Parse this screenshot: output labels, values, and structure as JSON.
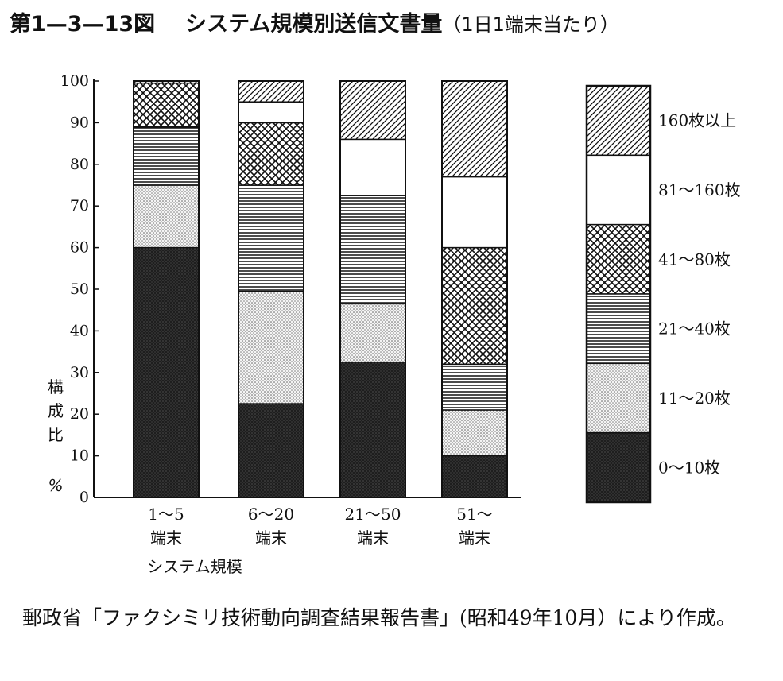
{
  "title": {
    "number": "第1—3—13図",
    "text": "システム規模別送信文書量",
    "subtitle": "（1日1端末当たり）"
  },
  "source": "郵政省「ファクシミリ技術動向調査結果報告書」(昭和49年10月）により作成。",
  "colors": {
    "0-10": "#1e1e1e",
    "11-20": "stipple-light",
    "21-40": "horizontal-lines",
    "41-80": "crosshatch",
    "81-160": "#ffffff",
    "160+": "diagonal-hatch"
  },
  "chart_data": {
    "type": "bar",
    "stacked": true,
    "ylabel": [
      "構",
      "成",
      "比",
      "%"
    ],
    "xlabel": "システム規模",
    "ylim": [
      0,
      100
    ],
    "yticks": [
      0,
      10,
      20,
      30,
      40,
      50,
      60,
      70,
      80,
      90,
      100
    ],
    "categories": [
      {
        "line1": "1～5",
        "line2": "端末"
      },
      {
        "line1": "6～20",
        "line2": "端末"
      },
      {
        "line1": "21～50",
        "line2": "端末"
      },
      {
        "line1": "51～",
        "line2": "端末"
      }
    ],
    "series": [
      {
        "name": "0～10枚",
        "key": "s0",
        "values": [
          60,
          22.5,
          32.5,
          10
        ]
      },
      {
        "name": "11～20枚",
        "key": "s1",
        "values": [
          15,
          27,
          14,
          11
        ]
      },
      {
        "name": "21～40枚",
        "key": "s2",
        "values": [
          14,
          25.5,
          26,
          11
        ]
      },
      {
        "name": "41～80枚",
        "key": "s3",
        "values": [
          10.5,
          15,
          0,
          28
        ]
      },
      {
        "name": "81～160枚",
        "key": "s4",
        "values": [
          0,
          5,
          13.5,
          17
        ]
      },
      {
        "name": "160枚以上",
        "key": "s5",
        "values": [
          0.5,
          5,
          14,
          23
        ]
      }
    ],
    "legend_position": "right"
  }
}
